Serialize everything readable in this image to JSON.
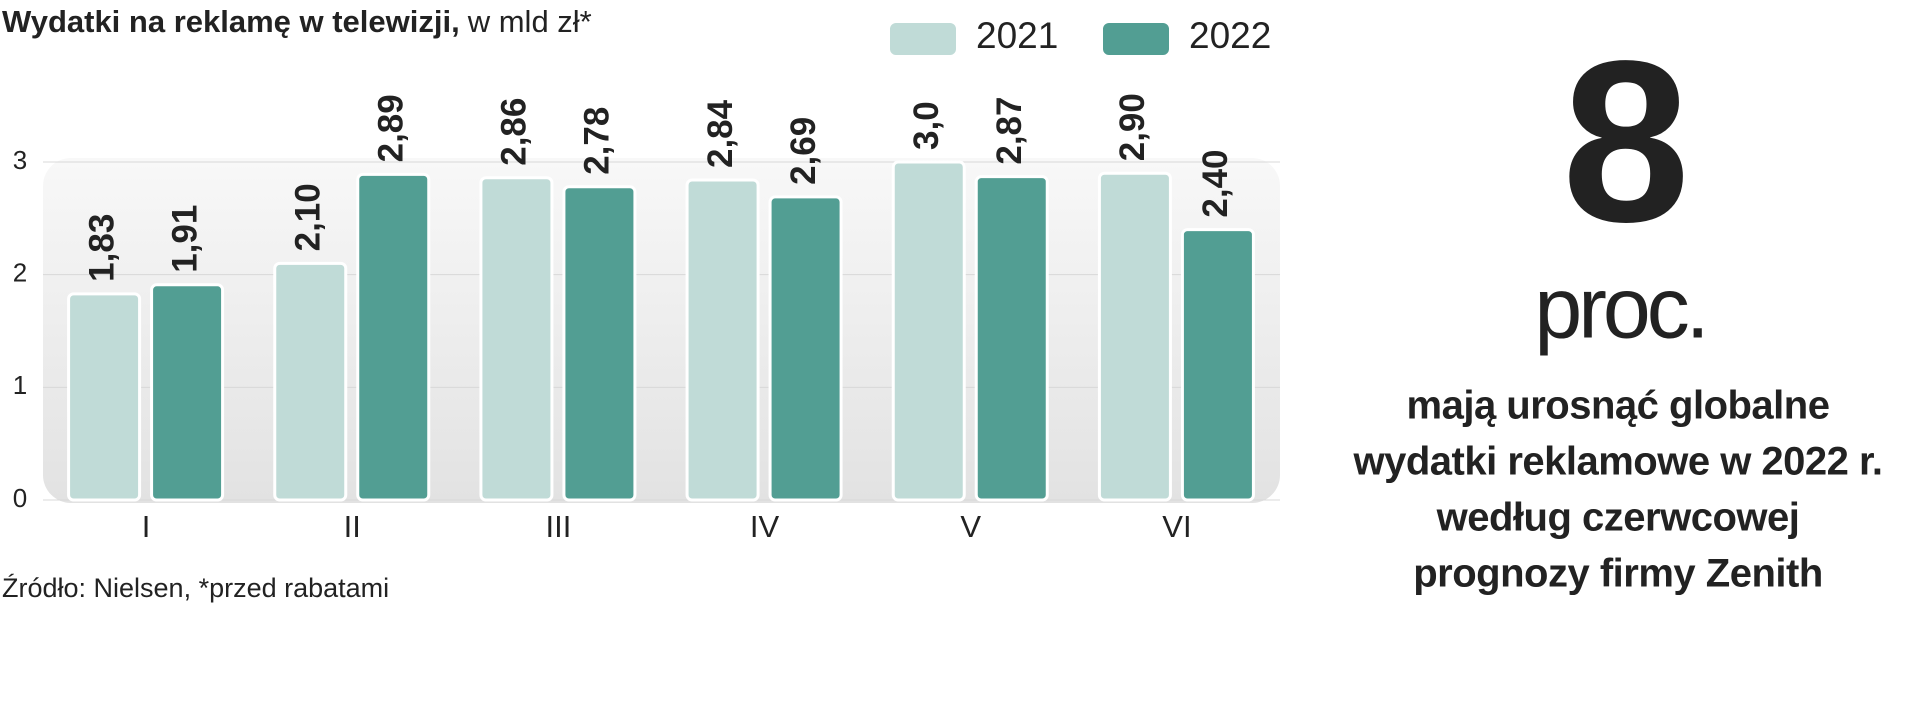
{
  "chart_data": {
    "type": "bar",
    "title": "Wydatki na reklamę w telewizji,",
    "subtitle": "w mld zł*",
    "categories": [
      "I",
      "II",
      "III",
      "IV",
      "V",
      "VI"
    ],
    "series": [
      {
        "name": "2021",
        "color": "#c0dbd7",
        "values": [
          1.83,
          2.1,
          2.86,
          2.84,
          3.0,
          2.9
        ],
        "value_labels": [
          "1,83",
          "2,10",
          "2,86",
          "2,84",
          "3,0",
          "2,90"
        ]
      },
      {
        "name": "2022",
        "color": "#529e93",
        "values": [
          1.91,
          2.89,
          2.78,
          2.69,
          2.87,
          2.4
        ],
        "value_labels": [
          "1,91",
          "2,89",
          "2,78",
          "2,69",
          "2,87",
          "2,40"
        ]
      }
    ],
    "ylim": [
      0,
      3
    ],
    "yticks": [
      0,
      1,
      2,
      3
    ],
    "grid": true,
    "source": "Źródło: Nielsen, *przed rabatami"
  },
  "callout": {
    "number": 8,
    "unit": "proc.",
    "lines": [
      "mają urosnąć globalne",
      "wydatki reklamowe w 2022 r.",
      "według czerwcowej",
      "prognozy firmy Zenith"
    ]
  }
}
